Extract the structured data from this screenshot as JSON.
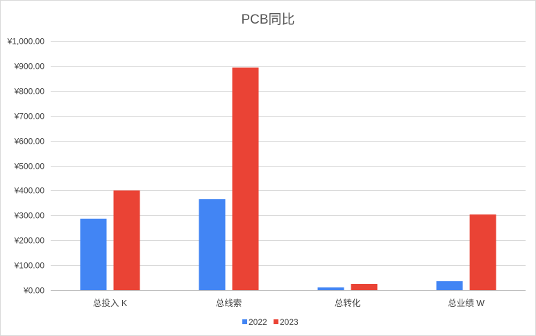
{
  "chart_data": {
    "type": "bar",
    "title": "PCB同比",
    "categories": [
      "总投入 K",
      "总线索",
      "总转化",
      "总业绩 W"
    ],
    "series": [
      {
        "name": "2022",
        "color": "#4285f4",
        "values": [
          287,
          365,
          11,
          36
        ]
      },
      {
        "name": "2023",
        "color": "#ea4335",
        "values": [
          400,
          893,
          25,
          304
        ]
      }
    ],
    "ylim": [
      0,
      1000
    ],
    "yticks": [
      0,
      100,
      200,
      300,
      400,
      500,
      600,
      700,
      800,
      900,
      1000
    ],
    "y_tick_labels": [
      "¥0.00",
      "¥100.00",
      "¥200.00",
      "¥300.00",
      "¥400.00",
      "¥500.00",
      "¥600.00",
      "¥700.00",
      "¥800.00",
      "¥900.00",
      "¥1,000.00"
    ],
    "xlabel": "",
    "ylabel": "",
    "grid": true,
    "legend_position": "bottom"
  }
}
